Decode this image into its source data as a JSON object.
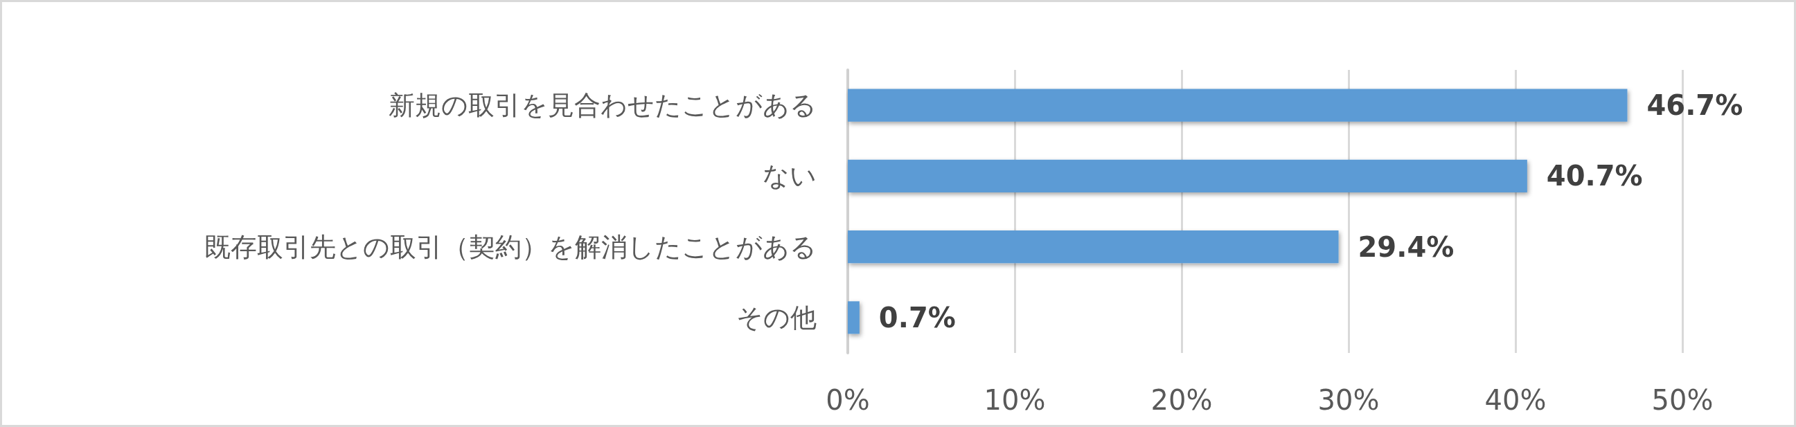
{
  "chart_data": {
    "type": "bar",
    "orientation": "horizontal",
    "categories": [
      "新規の取引を見合わせたことがある",
      "ない",
      "既存取引先との取引（契約）を解消したことがある",
      "その他"
    ],
    "values": [
      46.7,
      40.7,
      29.4,
      0.7
    ],
    "color": "#5b9bd5",
    "value_labels": [
      "46.7%",
      "40.7%",
      "29.4%",
      "0.7%"
    ],
    "xlim": [
      0,
      50
    ],
    "xticks": [
      {
        "value": 0,
        "label": "0%"
      },
      {
        "value": 10,
        "label": "10%"
      },
      {
        "value": 20,
        "label": "20%"
      },
      {
        "value": 30,
        "label": "30%"
      },
      {
        "value": 40,
        "label": "40%"
      },
      {
        "value": 50,
        "label": "50%"
      }
    ],
    "grid": "x"
  }
}
